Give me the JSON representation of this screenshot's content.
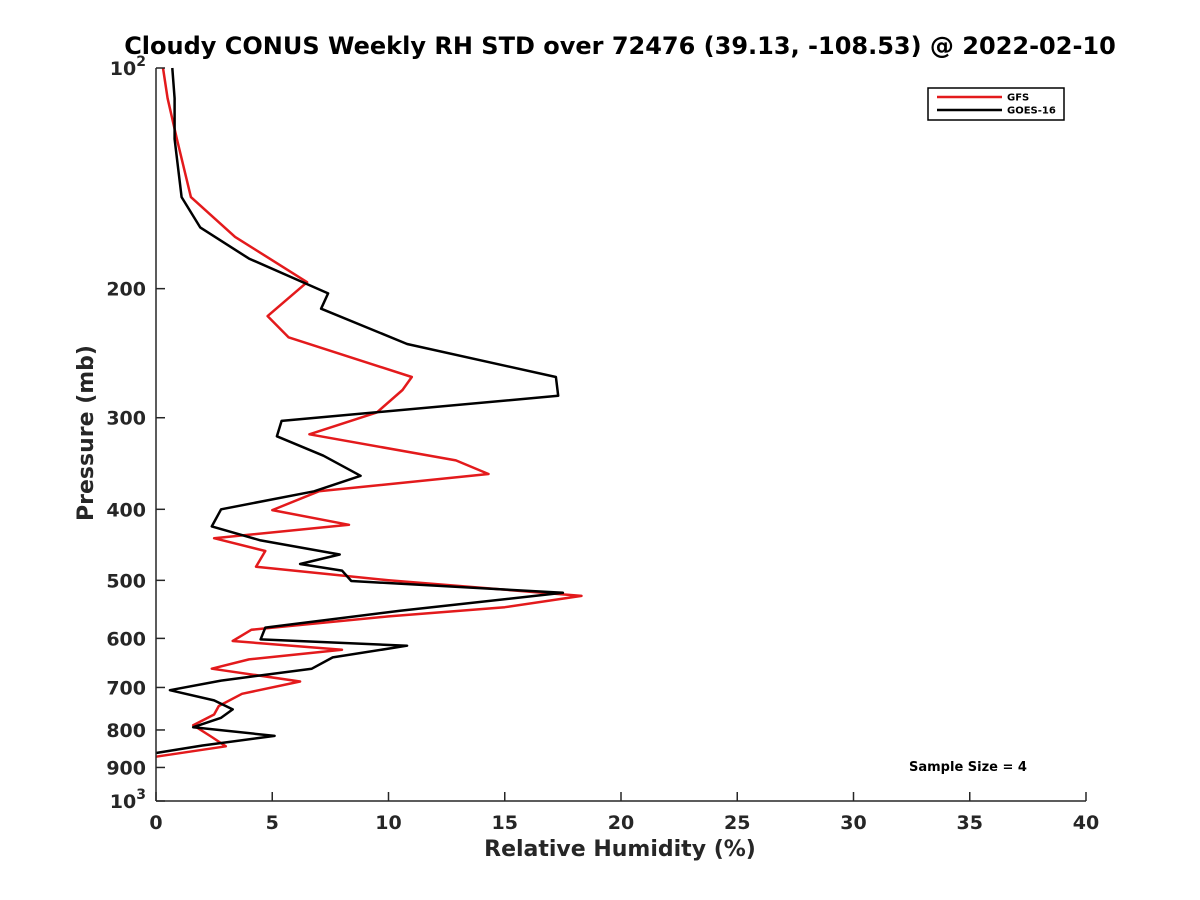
{
  "chart_data": {
    "type": "line",
    "title": "Cloudy CONUS Weekly RH STD over 72476 (39.13, -108.53) @ 2022-02-10",
    "xlabel": "Relative Humidity (%)",
    "ylabel": "Pressure (mb)",
    "xlim": [
      0,
      40
    ],
    "ylim": [
      100,
      1000
    ],
    "yscale": "log",
    "y_reversed": true,
    "grid": false,
    "legend_placement": "top-right",
    "x_ticks": [
      {
        "value": 0,
        "label": "0"
      },
      {
        "value": 5,
        "label": "5"
      },
      {
        "value": 10,
        "label": "10"
      },
      {
        "value": 15,
        "label": "15"
      },
      {
        "value": 20,
        "label": "20"
      },
      {
        "value": 25,
        "label": "25"
      },
      {
        "value": 30,
        "label": "30"
      },
      {
        "value": 35,
        "label": "35"
      },
      {
        "value": 40,
        "label": "40"
      }
    ],
    "y_ticks": [
      {
        "value": 100,
        "base": "10",
        "exp": "2"
      },
      {
        "value": 200,
        "label": "200"
      },
      {
        "value": 300,
        "label": "300"
      },
      {
        "value": 400,
        "label": "400"
      },
      {
        "value": 500,
        "label": "500"
      },
      {
        "value": 600,
        "label": "600"
      },
      {
        "value": 700,
        "label": "700"
      },
      {
        "value": 800,
        "label": "800"
      },
      {
        "value": 900,
        "label": "900"
      },
      {
        "value": 1000,
        "base": "10",
        "exp": "3"
      }
    ],
    "annotation": "Sample Size = 4",
    "series": [
      {
        "name": "GFS",
        "color": "#e31a1c",
        "points": [
          [
            0.3,
            100
          ],
          [
            0.5,
            110
          ],
          [
            0.9,
            125
          ],
          [
            1.5,
            150
          ],
          [
            3.4,
            170
          ],
          [
            6.5,
            196
          ],
          [
            4.8,
            218
          ],
          [
            5.7,
            233
          ],
          [
            11.0,
            264
          ],
          [
            10.6,
            275
          ],
          [
            9.5,
            295
          ],
          [
            6.6,
            316
          ],
          [
            12.9,
            343
          ],
          [
            14.3,
            358
          ],
          [
            7.0,
            378
          ],
          [
            5.0,
            401
          ],
          [
            8.3,
            420
          ],
          [
            2.5,
            438
          ],
          [
            4.7,
            456
          ],
          [
            4.3,
            479
          ],
          [
            10.0,
            500
          ],
          [
            18.3,
            525
          ],
          [
            15.0,
            544
          ],
          [
            10.0,
            560
          ],
          [
            4.1,
            584
          ],
          [
            3.3,
            605
          ],
          [
            8.0,
            622
          ],
          [
            4.0,
            641
          ],
          [
            2.4,
            660
          ],
          [
            6.2,
            687
          ],
          [
            3.7,
            714
          ],
          [
            2.7,
            742
          ],
          [
            2.5,
            762
          ],
          [
            1.6,
            788
          ],
          [
            2.4,
            818
          ],
          [
            3.0,
            842
          ],
          [
            0.0,
            870
          ]
        ]
      },
      {
        "name": "GOES-16",
        "color": "#000000",
        "points": [
          [
            0.7,
            100
          ],
          [
            0.8,
            110
          ],
          [
            0.8,
            125
          ],
          [
            1.1,
            150
          ],
          [
            1.9,
            165
          ],
          [
            4.0,
            182
          ],
          [
            7.4,
            203
          ],
          [
            7.1,
            213
          ],
          [
            10.8,
            238
          ],
          [
            17.2,
            264
          ],
          [
            17.3,
            280
          ],
          [
            5.4,
            303
          ],
          [
            5.2,
            318
          ],
          [
            7.2,
            338
          ],
          [
            8.8,
            360
          ],
          [
            6.8,
            378
          ],
          [
            2.8,
            400
          ],
          [
            2.4,
            422
          ],
          [
            4.5,
            441
          ],
          [
            7.9,
            461
          ],
          [
            6.2,
            475
          ],
          [
            8.0,
            485
          ],
          [
            8.4,
            501
          ],
          [
            17.5,
            520
          ],
          [
            10.5,
            550
          ],
          [
            4.7,
            580
          ],
          [
            4.5,
            602
          ],
          [
            10.8,
            614
          ],
          [
            7.6,
            637
          ],
          [
            6.7,
            660
          ],
          [
            2.8,
            685
          ],
          [
            0.6,
            706
          ],
          [
            2.5,
            729
          ],
          [
            3.3,
            750
          ],
          [
            2.8,
            770
          ],
          [
            1.6,
            793
          ],
          [
            5.1,
            815
          ],
          [
            2.0,
            840
          ],
          [
            0.0,
            860
          ]
        ]
      }
    ]
  }
}
